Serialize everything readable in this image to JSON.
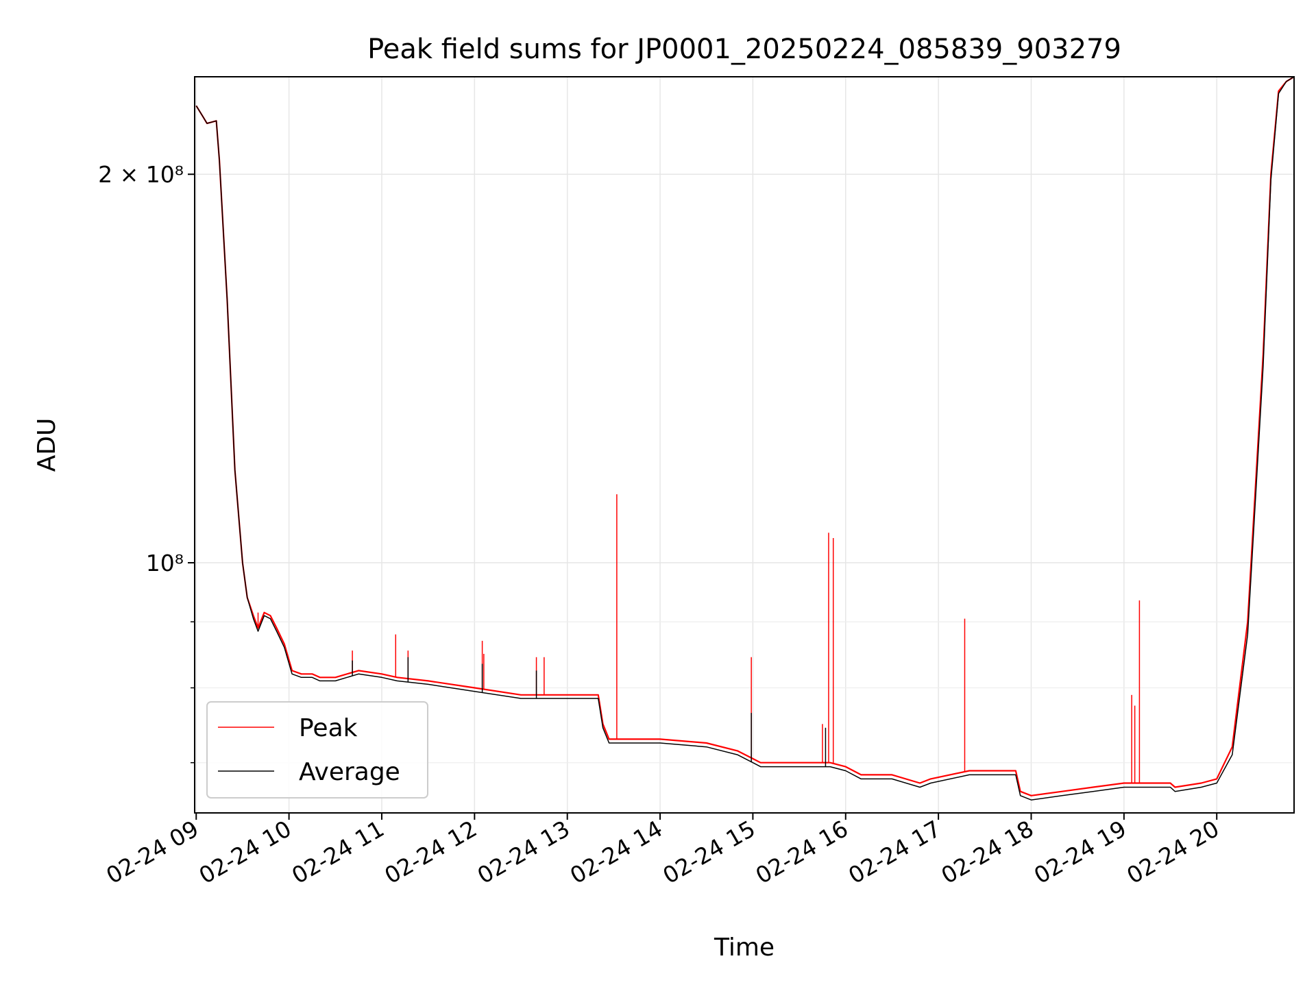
{
  "chart_data": {
    "type": "line",
    "title": "Peak field sums for JP0001_20250224_085839_903279",
    "xlabel": "Time",
    "ylabel": "ADU",
    "y_scale": "log",
    "x_ticks": [
      "02-24 09",
      "02-24 10",
      "02-24 11",
      "02-24 12",
      "02-24 13",
      "02-24 14",
      "02-24 15",
      "02-24 16",
      "02-24 17",
      "02-24 18",
      "02-24 19",
      "02-24 20"
    ],
    "y_ticks": [
      {
        "value": 200000000,
        "label": "2 × 10⁸"
      },
      {
        "value": 100000000,
        "label": "10⁸"
      }
    ],
    "y_minor_ticks": [
      90000000,
      80000000,
      70000000
    ],
    "xlim": [
      "2025-02-24 08:59",
      "2025-02-24 20:50"
    ],
    "ylim": [
      64000000,
      238000000
    ],
    "grid": true,
    "legend_position": "lower-left",
    "colors": {
      "Peak": "#ff0000",
      "Average": "#000000"
    },
    "series": [
      {
        "name": "Peak",
        "x": [
          "2025-02-24 09:00",
          "2025-02-24 09:04",
          "2025-02-24 09:07",
          "2025-02-24 09:10",
          "2025-02-24 09:13",
          "2025-02-24 09:15",
          "2025-02-24 09:20",
          "2025-02-24 09:25",
          "2025-02-24 09:30",
          "2025-02-24 09:33",
          "2025-02-24 09:37",
          "2025-02-24 09:40",
          "2025-02-24 09:44",
          "2025-02-24 09:48",
          "2025-02-24 09:52",
          "2025-02-24 09:57",
          "2025-02-24 10:02",
          "2025-02-24 10:08",
          "2025-02-24 10:15",
          "2025-02-24 10:20",
          "2025-02-24 10:30",
          "2025-02-24 10:45",
          "2025-02-24 11:00",
          "2025-02-24 11:10",
          "2025-02-24 11:30",
          "2025-02-24 12:00",
          "2025-02-24 12:30",
          "2025-02-24 13:00",
          "2025-02-24 13:20",
          "2025-02-24 13:23",
          "2025-02-24 13:27",
          "2025-02-24 14:00",
          "2025-02-24 14:30",
          "2025-02-24 14:50",
          "2025-02-24 15:00",
          "2025-02-24 15:05",
          "2025-02-24 15:30",
          "2025-02-24 15:50",
          "2025-02-24 16:00",
          "2025-02-24 16:10",
          "2025-02-24 16:30",
          "2025-02-24 16:48",
          "2025-02-24 16:55",
          "2025-02-24 17:20",
          "2025-02-24 17:50",
          "2025-02-24 17:53",
          "2025-02-24 18:00",
          "2025-02-24 18:20",
          "2025-02-24 18:40",
          "2025-02-24 19:00",
          "2025-02-24 19:30",
          "2025-02-24 19:33",
          "2025-02-24 19:50",
          "2025-02-24 20:00",
          "2025-02-24 20:10",
          "2025-02-24 20:20",
          "2025-02-24 20:30",
          "2025-02-24 20:35",
          "2025-02-24 20:40",
          "2025-02-24 20:45",
          "2025-02-24 20:50"
        ],
        "y": [
          226000000,
          222000000,
          219000000,
          219500000,
          220000000,
          205000000,
          160000000,
          118000000,
          100000000,
          94000000,
          91000000,
          89000000,
          91500000,
          91000000,
          89000000,
          86500000,
          82500000,
          82000000,
          82000000,
          81500000,
          81500000,
          82500000,
          82000000,
          81500000,
          81000000,
          80000000,
          79000000,
          79000000,
          79000000,
          75000000,
          73000000,
          73000000,
          72500000,
          71500000,
          70500000,
          70000000,
          70000000,
          70000000,
          69500000,
          68500000,
          68500000,
          67500000,
          68000000,
          69000000,
          69000000,
          66500000,
          66000000,
          66500000,
          67000000,
          67500000,
          67500000,
          67000000,
          67500000,
          68000000,
          72000000,
          90000000,
          145000000,
          200000000,
          232000000,
          236000000,
          238000000
        ],
        "spikes": [
          {
            "x": "2025-02-24 09:40",
            "y": 91500000
          },
          {
            "x": "2025-02-24 10:41",
            "y": 85500000
          },
          {
            "x": "2025-02-24 11:09",
            "y": 88000000
          },
          {
            "x": "2025-02-24 11:17",
            "y": 85500000
          },
          {
            "x": "2025-02-24 12:05",
            "y": 87000000
          },
          {
            "x": "2025-02-24 12:06",
            "y": 85000000
          },
          {
            "x": "2025-02-24 12:40",
            "y": 84500000
          },
          {
            "x": "2025-02-24 12:45",
            "y": 84500000
          },
          {
            "x": "2025-02-24 13:32",
            "y": 113000000
          },
          {
            "x": "2025-02-24 14:59",
            "y": 84500000
          },
          {
            "x": "2025-02-24 15:45",
            "y": 75000000
          },
          {
            "x": "2025-02-24 15:49",
            "y": 105500000
          },
          {
            "x": "2025-02-24 15:52",
            "y": 104500000
          },
          {
            "x": "2025-02-24 17:17",
            "y": 90500000
          },
          {
            "x": "2025-02-24 19:05",
            "y": 79000000
          },
          {
            "x": "2025-02-24 19:07",
            "y": 77500000
          },
          {
            "x": "2025-02-24 19:10",
            "y": 93500000
          }
        ]
      },
      {
        "name": "Average",
        "x": [
          "2025-02-24 09:00",
          "2025-02-24 09:04",
          "2025-02-24 09:07",
          "2025-02-24 09:10",
          "2025-02-24 09:13",
          "2025-02-24 09:15",
          "2025-02-24 09:20",
          "2025-02-24 09:25",
          "2025-02-24 09:30",
          "2025-02-24 09:33",
          "2025-02-24 09:37",
          "2025-02-24 09:40",
          "2025-02-24 09:44",
          "2025-02-24 09:48",
          "2025-02-24 09:52",
          "2025-02-24 09:57",
          "2025-02-24 10:02",
          "2025-02-24 10:08",
          "2025-02-24 10:15",
          "2025-02-24 10:20",
          "2025-02-24 10:30",
          "2025-02-24 10:45",
          "2025-02-24 11:00",
          "2025-02-24 11:10",
          "2025-02-24 11:30",
          "2025-02-24 12:00",
          "2025-02-24 12:30",
          "2025-02-24 13:00",
          "2025-02-24 13:20",
          "2025-02-24 13:23",
          "2025-02-24 13:27",
          "2025-02-24 14:00",
          "2025-02-24 14:30",
          "2025-02-24 14:50",
          "2025-02-24 15:00",
          "2025-02-24 15:05",
          "2025-02-24 15:30",
          "2025-02-24 15:50",
          "2025-02-24 16:00",
          "2025-02-24 16:10",
          "2025-02-24 16:30",
          "2025-02-24 16:48",
          "2025-02-24 16:55",
          "2025-02-24 17:20",
          "2025-02-24 17:50",
          "2025-02-24 17:53",
          "2025-02-24 18:00",
          "2025-02-24 18:20",
          "2025-02-24 18:40",
          "2025-02-24 19:00",
          "2025-02-24 19:30",
          "2025-02-24 19:33",
          "2025-02-24 19:50",
          "2025-02-24 20:00",
          "2025-02-24 20:10",
          "2025-02-24 20:20",
          "2025-02-24 20:30",
          "2025-02-24 20:35",
          "2025-02-24 20:40",
          "2025-02-24 20:45",
          "2025-02-24 20:50"
        ],
        "y": [
          226000000,
          222000000,
          219000000,
          219500000,
          220000000,
          205000000,
          160000000,
          118000000,
          100000000,
          94000000,
          90500000,
          88500000,
          91000000,
          90500000,
          88500000,
          86000000,
          82000000,
          81500000,
          81500000,
          81000000,
          81000000,
          82000000,
          81500000,
          81000000,
          80500000,
          79500000,
          78500000,
          78500000,
          78500000,
          74500000,
          72500000,
          72500000,
          72000000,
          71000000,
          70000000,
          69500000,
          69500000,
          69500000,
          69000000,
          68000000,
          68000000,
          67000000,
          67500000,
          68500000,
          68500000,
          66000000,
          65500000,
          66000000,
          66500000,
          67000000,
          67000000,
          66500000,
          67000000,
          67500000,
          71000000,
          88000000,
          142000000,
          198000000,
          231000000,
          236000000,
          238000000
        ],
        "spikes": [
          {
            "x": "2025-02-24 10:41",
            "y": 84000000
          },
          {
            "x": "2025-02-24 11:17",
            "y": 84500000
          },
          {
            "x": "2025-02-24 12:05",
            "y": 83500000
          },
          {
            "x": "2025-02-24 12:40",
            "y": 82500000
          },
          {
            "x": "2025-02-24 14:59",
            "y": 76500000
          },
          {
            "x": "2025-02-24 15:47",
            "y": 74500000
          }
        ]
      }
    ]
  }
}
